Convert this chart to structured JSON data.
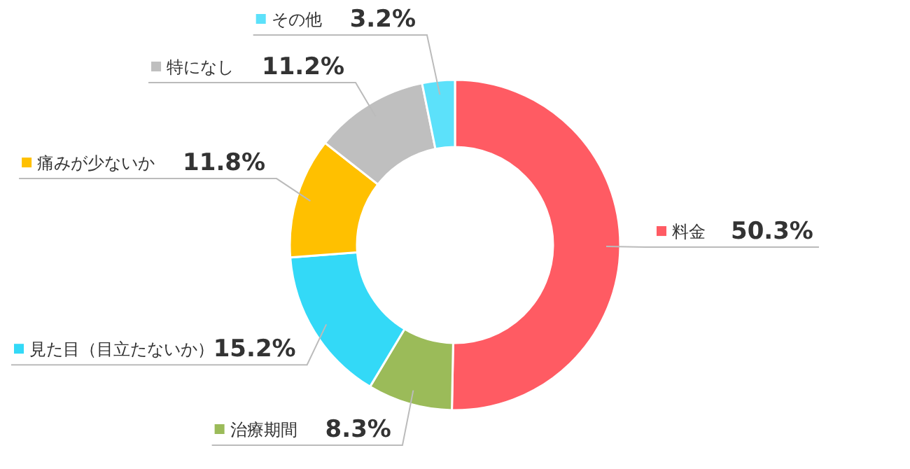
{
  "chart_data": {
    "type": "donut",
    "categories": [
      "料金",
      "治療期間",
      "見た目（目立たないか）",
      "痛みが少ないか",
      "特になし",
      "その他"
    ],
    "values": [
      50.3,
      8.3,
      15.2,
      11.8,
      11.2,
      3.2
    ],
    "colors": [
      "#ff5b63",
      "#9bbb59",
      "#33d9f7",
      "#ffc000",
      "#bfbfbf",
      "#5ce1fa"
    ],
    "value_labels": [
      "50.3%",
      "8.3%",
      "15.2%",
      "11.8%",
      "11.2%",
      "3.2%"
    ],
    "legend": "left"
  }
}
